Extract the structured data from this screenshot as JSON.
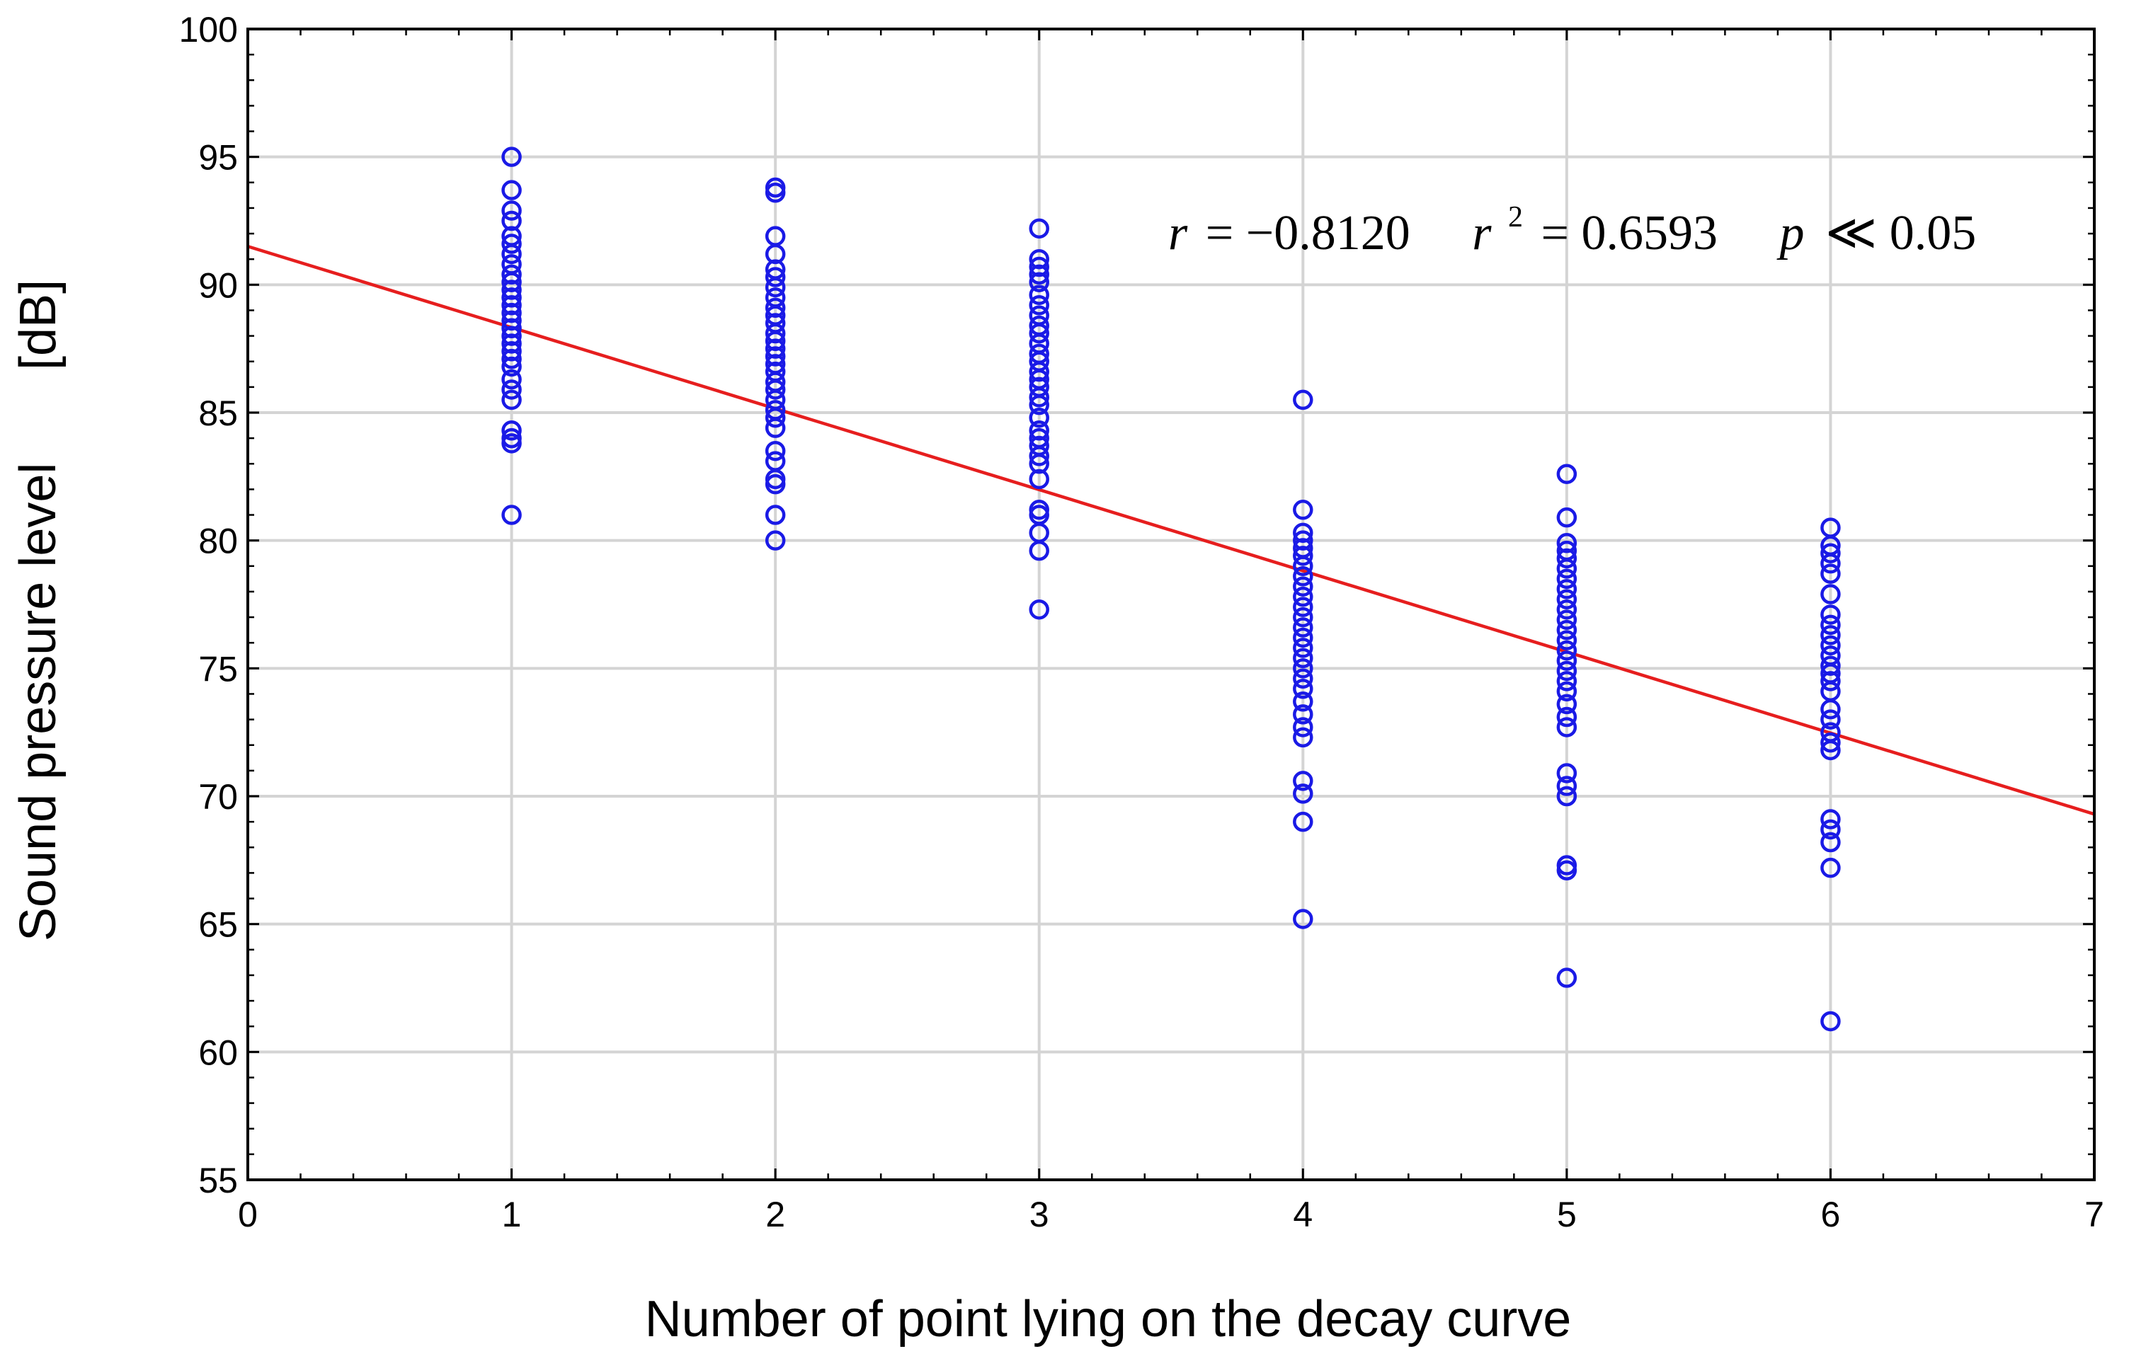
{
  "chart_data": {
    "type": "scatter",
    "title": "",
    "xlabel": "Number of point lying on the decay curve",
    "ylabel": "Sound pressure level",
    "ylabel_unit": "[dB]",
    "xlim": [
      0,
      7
    ],
    "ylim": [
      55,
      100
    ],
    "xticks": [
      0,
      1,
      2,
      3,
      4,
      5,
      6,
      7
    ],
    "yticks": [
      55,
      60,
      65,
      70,
      75,
      80,
      85,
      90,
      95,
      100
    ],
    "grid": true,
    "colors": {
      "points": "#1a1ae6",
      "fit_line": "#e61e1e",
      "grid": "#d4d4d4",
      "axis": "#000000"
    },
    "series": [
      {
        "name": "1",
        "x": 1,
        "values": [
          95.0,
          93.7,
          92.9,
          92.5,
          91.9,
          91.6,
          91.2,
          90.8,
          90.4,
          90.1,
          89.8,
          89.5,
          89.2,
          88.9,
          88.6,
          88.3,
          88.0,
          87.7,
          87.4,
          87.1,
          86.8,
          86.3,
          85.9,
          85.5,
          84.3,
          84.0,
          83.8,
          81.0
        ]
      },
      {
        "name": "2",
        "x": 2,
        "values": [
          93.8,
          93.6,
          91.9,
          91.2,
          90.6,
          90.3,
          89.9,
          89.5,
          89.1,
          88.8,
          88.5,
          88.1,
          87.8,
          87.5,
          87.2,
          86.9,
          86.6,
          86.2,
          85.9,
          85.5,
          85.1,
          84.8,
          84.4,
          83.5,
          83.1,
          82.4,
          82.2,
          81.0,
          80.0
        ]
      },
      {
        "name": "3",
        "x": 3,
        "values": [
          92.2,
          91.0,
          90.7,
          90.4,
          90.1,
          89.6,
          89.2,
          88.8,
          88.4,
          88.1,
          87.7,
          87.3,
          87.0,
          86.6,
          86.3,
          86.0,
          85.6,
          85.3,
          84.8,
          84.3,
          84.0,
          83.7,
          83.3,
          83.0,
          82.4,
          81.2,
          81.0,
          80.3,
          79.6,
          77.3
        ]
      },
      {
        "name": "4",
        "x": 4,
        "values": [
          85.5,
          81.2,
          80.3,
          80.0,
          79.7,
          79.4,
          79.0,
          78.6,
          78.2,
          77.8,
          77.4,
          77.0,
          76.6,
          76.2,
          75.8,
          75.4,
          75.0,
          74.6,
          74.2,
          73.7,
          73.2,
          72.7,
          72.3,
          70.6,
          70.1,
          69.0,
          65.2
        ]
      },
      {
        "name": "5",
        "x": 5,
        "values": [
          82.6,
          80.9,
          79.9,
          79.6,
          79.3,
          78.9,
          78.5,
          78.1,
          77.7,
          77.3,
          76.9,
          76.5,
          76.1,
          75.7,
          75.3,
          74.9,
          74.5,
          74.1,
          73.6,
          73.1,
          72.7,
          70.9,
          70.4,
          70.0,
          67.3,
          67.1,
          62.9
        ]
      },
      {
        "name": "6",
        "x": 6,
        "values": [
          80.5,
          79.8,
          79.5,
          79.1,
          78.7,
          77.9,
          77.1,
          76.7,
          76.3,
          75.9,
          75.5,
          75.1,
          74.8,
          74.5,
          74.1,
          73.4,
          73.0,
          72.5,
          72.1,
          71.8,
          69.1,
          68.7,
          68.2,
          67.2,
          61.2
        ]
      }
    ],
    "fit_line": {
      "x": [
        0,
        7
      ],
      "y": [
        91.5,
        69.3
      ]
    },
    "annotation": {
      "r_label": "r",
      "r_value": "= −0.8120",
      "r2_label": "r",
      "r2_exp": "2",
      "r2_value": "= 0.6593",
      "p_label": "p",
      "p_value": "≪ 0.05"
    }
  }
}
